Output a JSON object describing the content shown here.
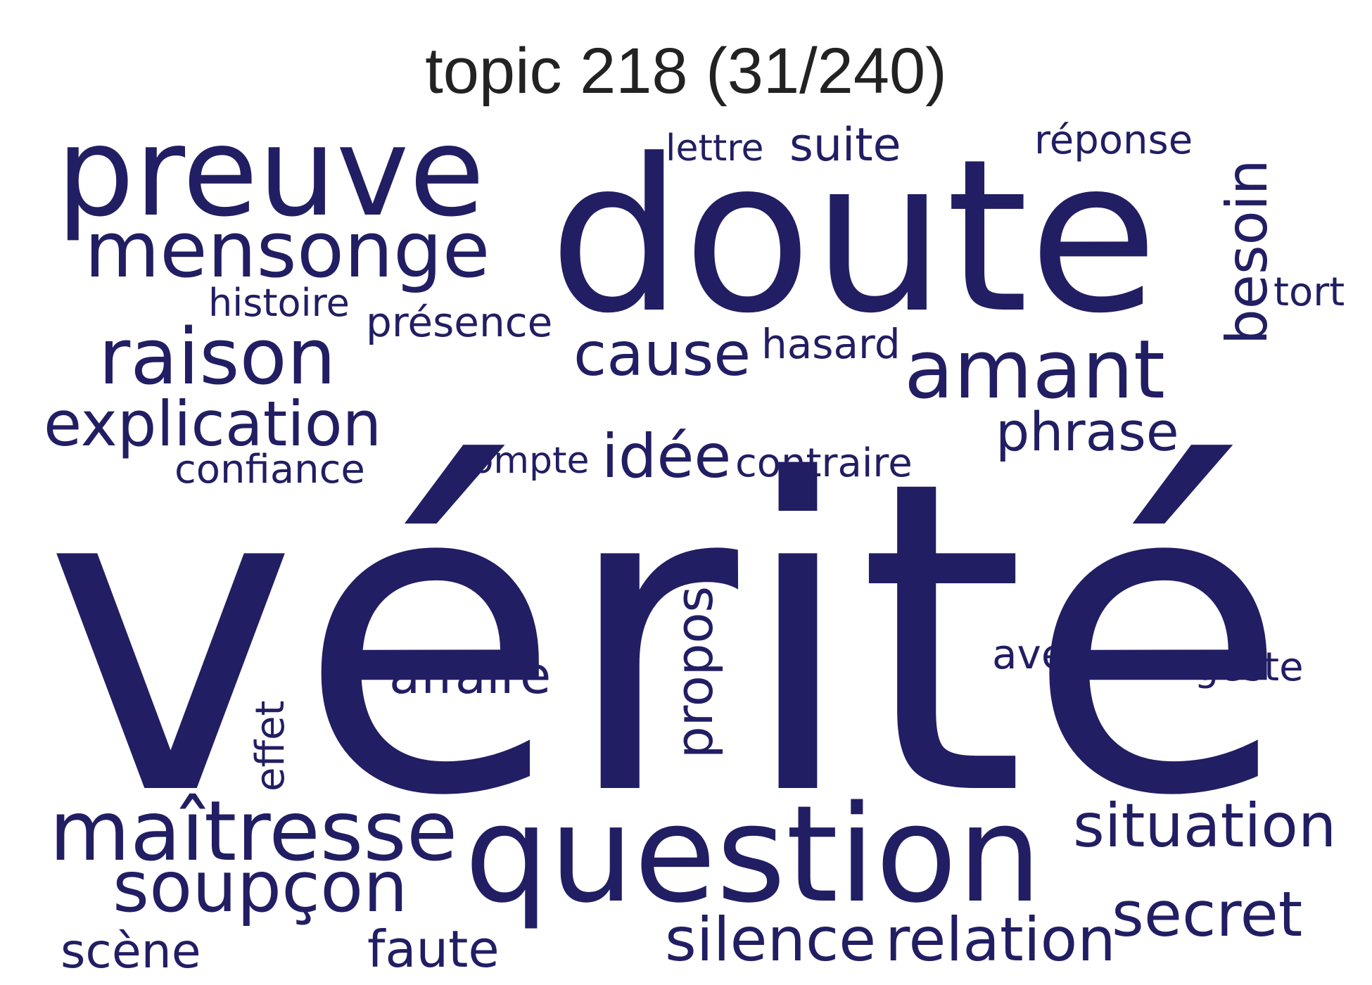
{
  "title": "topic 218 (31/240)",
  "word_color": "#221e63",
  "title_color": "#222222",
  "words": [
    {
      "text": "vérité"
    },
    {
      "text": "doute"
    },
    {
      "text": "question"
    },
    {
      "text": "preuve"
    },
    {
      "text": "mensonge"
    },
    {
      "text": "amant"
    },
    {
      "text": "maîtresse"
    },
    {
      "text": "soupçon"
    },
    {
      "text": "raison"
    },
    {
      "text": "explication"
    },
    {
      "text": "cause"
    },
    {
      "text": "idée"
    },
    {
      "text": "situation"
    },
    {
      "text": "phrase"
    },
    {
      "text": "secret"
    },
    {
      "text": "silence"
    },
    {
      "text": "relation"
    },
    {
      "text": "affaire"
    },
    {
      "text": "propos"
    },
    {
      "text": "besoin"
    },
    {
      "text": "suite"
    },
    {
      "text": "réponse"
    },
    {
      "text": "lettre"
    },
    {
      "text": "histoire"
    },
    {
      "text": "présence"
    },
    {
      "text": "hasard"
    },
    {
      "text": "tort"
    },
    {
      "text": "confiance"
    },
    {
      "text": "compte"
    },
    {
      "text": "contraire"
    },
    {
      "text": "aveu"
    },
    {
      "text": "geste"
    },
    {
      "text": "effet"
    },
    {
      "text": "scène"
    },
    {
      "text": "faute"
    }
  ]
}
